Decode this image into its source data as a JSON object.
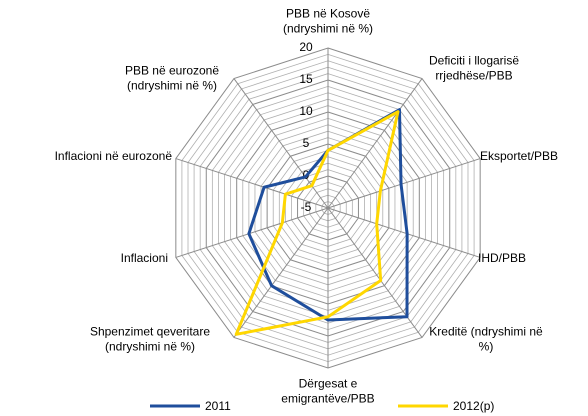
{
  "chart_data": {
    "type": "radar",
    "categories": [
      "PBB në Kosovë\n(ndryshimi në %)",
      "Deficiti i llogarisë\nrrjedhëse/PBB",
      "Eksportet/PBB",
      "IHD/PBB",
      "Kreditë (ndryshimi në\n%)",
      "Dërgesat e\nemigrantëve/PBB",
      "Shpenzimet qeveritare\n(ndryshimi në %)",
      "Inflacioni",
      "Inflacioni në eurozonë",
      "PBB në eurozonë\n(ndryshimi në %)"
    ],
    "series": [
      {
        "name": "2011",
        "color": "#1f4e9c",
        "values": [
          4,
          14,
          7,
          8,
          16,
          12.5,
          10,
          8,
          5.5,
          1
        ]
      },
      {
        "name": "2012(p)",
        "color": "#ffd700",
        "values": [
          4,
          13.6,
          3.6,
          3,
          9,
          12,
          19.4,
          2.5,
          2,
          -0.7
        ]
      }
    ],
    "ylim": [
      -5,
      20
    ],
    "yticks": [
      -5,
      0,
      5,
      10,
      15,
      20
    ],
    "grid": true,
    "legend": "bottom"
  }
}
